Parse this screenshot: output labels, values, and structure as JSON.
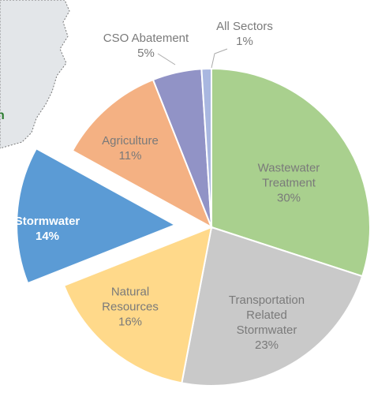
{
  "map_label": "n",
  "chart_data": {
    "type": "pie",
    "categories": [
      "Wastewater Treatment",
      "Transportation Related Stormwater",
      "Natural Resources",
      "Stormwater",
      "Agriculture",
      "CSO Abatement",
      "All Sectors"
    ],
    "values": [
      30,
      23,
      16,
      14,
      11,
      5,
      1
    ],
    "value_labels": [
      "30%",
      "23%",
      "16%",
      "14%",
      "11%",
      "5%",
      "1%"
    ],
    "colors": [
      "#a9d08e",
      "#c9c9c9",
      "#ffd98a",
      "#5b9bd5",
      "#f4b183",
      "#9193c6",
      "#a9b7e0"
    ],
    "exploded": "Stormwater"
  }
}
